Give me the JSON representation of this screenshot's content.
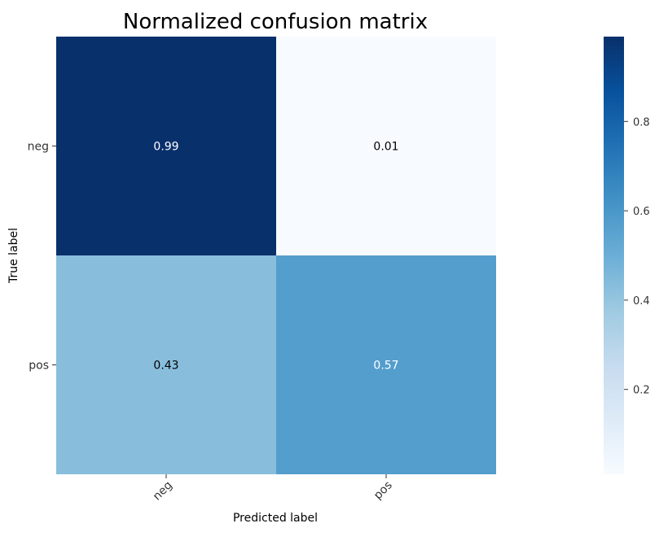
{
  "chart_data": {
    "type": "heatmap",
    "title": "Normalized confusion matrix",
    "xlabel": "Predicted label",
    "ylabel": "True label",
    "x_categories": [
      "neg",
      "pos"
    ],
    "y_categories": [
      "neg",
      "pos"
    ],
    "values": [
      [
        0.99,
        0.01
      ],
      [
        0.43,
        0.57
      ]
    ],
    "cell_labels": [
      [
        "0.99",
        "0.01"
      ],
      [
        "0.43",
        "0.57"
      ]
    ],
    "colormap": "Blues",
    "colorbar": {
      "range": [
        0.01,
        0.99
      ],
      "ticks": [
        0.2,
        0.4,
        0.6,
        0.8
      ],
      "tick_labels": [
        "0.2",
        "0.4",
        "0.6",
        "0.8"
      ]
    },
    "grid": false,
    "colors": {
      "cmap_low": "#f7fbff",
      "cmap_high": "#08306b",
      "text_dark": "#000000",
      "text_light": "#ffffff"
    }
  }
}
